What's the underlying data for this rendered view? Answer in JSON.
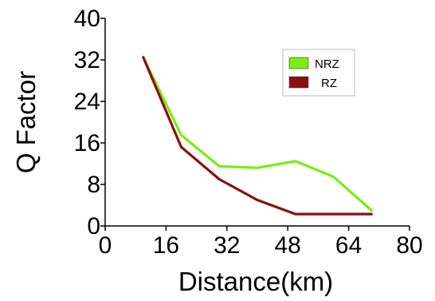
{
  "chart_data": {
    "type": "line",
    "title": "",
    "xlabel": "Distance(km)",
    "ylabel": "Q Factor",
    "xlim": [
      0,
      80
    ],
    "ylim": [
      0,
      40
    ],
    "xticks": [
      0,
      16,
      32,
      48,
      64,
      80
    ],
    "yticks": [
      0,
      8,
      16,
      24,
      32,
      40
    ],
    "xtick_labels": [
      "0",
      "16",
      "32",
      "48",
      "64",
      "80"
    ],
    "ytick_labels": [
      "0",
      "8",
      "16",
      "24",
      "32",
      "40"
    ],
    "grid": false,
    "legend_position": "top-right",
    "series": [
      {
        "name": "NRZ",
        "color": "#77ee11",
        "x": [
          10,
          20,
          30,
          40,
          50,
          60,
          70
        ],
        "y": [
          32.5,
          17.5,
          11.5,
          11.2,
          12.5,
          9.5,
          3
        ]
      },
      {
        "name": "RZ",
        "color": "#8b0f0f",
        "x": [
          10,
          20,
          30,
          40,
          50,
          60,
          70
        ],
        "y": [
          32.5,
          15.2,
          9,
          5,
          2.3,
          2.3,
          2.3
        ]
      }
    ]
  }
}
